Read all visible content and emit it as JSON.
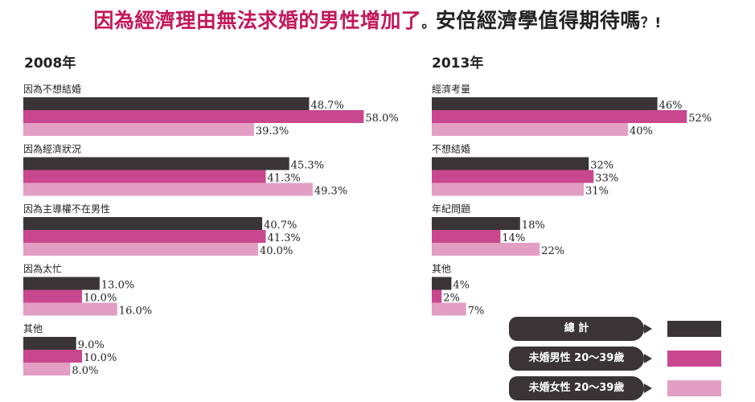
{
  "title": {
    "part1": "因為經濟理由無法求婚的男性增加了",
    "part2": "。",
    "part3": "安倍經濟學值得期待嗎",
    "part4": "？!"
  },
  "colors": {
    "total": "#3a3436",
    "men": "#c8478e",
    "women": "#e39ec4"
  },
  "legend": [
    {
      "label": "總 計",
      "series": "total"
    },
    {
      "label": "未婚男性 20～39歲",
      "series": "men"
    },
    {
      "label": "未婚女性 20～39歲",
      "series": "women"
    }
  ],
  "chart_data": [
    {
      "type": "bar",
      "orientation": "horizontal",
      "title": "2008年",
      "categories": [
        "因為不想結婚",
        "因為經濟狀況",
        "因為主導權不在男性",
        "因為太忙",
        "其他"
      ],
      "series": [
        {
          "name": "總 計",
          "values": [
            48.7,
            45.3,
            40.7,
            13.0,
            9.0
          ]
        },
        {
          "name": "未婚男性 20～39歲",
          "values": [
            58.0,
            41.3,
            41.3,
            10.0,
            10.0
          ]
        },
        {
          "name": "未婚女性 20～39歲",
          "values": [
            39.3,
            49.3,
            40.0,
            16.0,
            8.0
          ]
        }
      ],
      "value_labels": [
        [
          "48.7%",
          "45.3%",
          "40.7%",
          "13.0%",
          "9.0%"
        ],
        [
          "58.0%",
          "41.3%",
          "41.3%",
          "10.0%",
          "10.0%"
        ],
        [
          "39.3%",
          "49.3%",
          "40.0%",
          "16.0%",
          "8.0%"
        ]
      ],
      "unit": "%"
    },
    {
      "type": "bar",
      "orientation": "horizontal",
      "title": "2013年",
      "categories": [
        "經濟考量",
        "不想結婚",
        "年紀問題",
        "其他"
      ],
      "series": [
        {
          "name": "總 計",
          "values": [
            46,
            32,
            18,
            4
          ]
        },
        {
          "name": "未婚男性 20～39歲",
          "values": [
            52,
            33,
            14,
            2
          ]
        },
        {
          "name": "未婚女性 20～39歲",
          "values": [
            40,
            31,
            22,
            7
          ]
        }
      ],
      "value_labels": [
        [
          "46%",
          "32%",
          "18%",
          "4%"
        ],
        [
          "52%",
          "33%",
          "14%",
          "2%"
        ],
        [
          "40%",
          "31%",
          "22%",
          "7%"
        ]
      ],
      "unit": "%"
    }
  ]
}
